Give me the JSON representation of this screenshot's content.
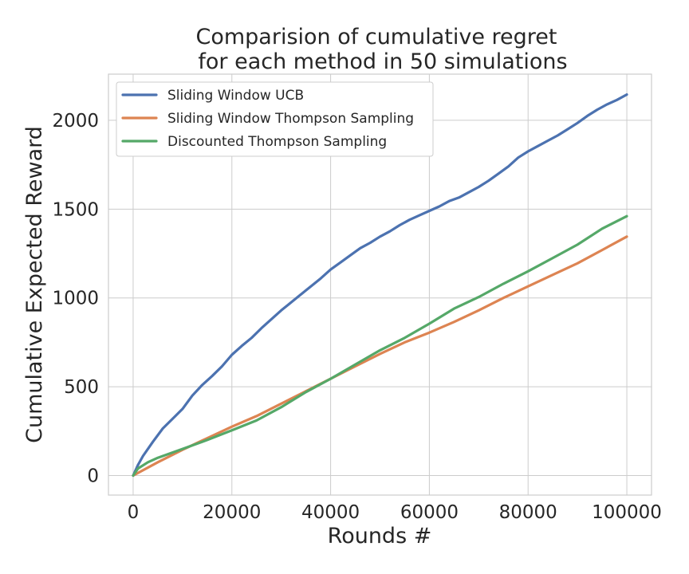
{
  "chart_data": {
    "type": "line",
    "title_lines": [
      "Comparision of cumulative regret",
      "for each method in 50 simulations"
    ],
    "xlabel": "Rounds #",
    "ylabel": "Cumulative Expected Reward",
    "xlim": [
      -5000,
      105000
    ],
    "ylim": [
      -110,
      2260
    ],
    "xticks": [
      0,
      20000,
      40000,
      60000,
      80000,
      100000
    ],
    "xtick_labels": [
      "0",
      "20000",
      "40000",
      "60000",
      "80000",
      "100000"
    ],
    "yticks": [
      0,
      500,
      1000,
      1500,
      2000
    ],
    "ytick_labels": [
      "0",
      "500",
      "1000",
      "1500",
      "2000"
    ],
    "grid": true,
    "legend_position": "top-left",
    "series": [
      {
        "name": "Sliding Window UCB",
        "color": "#4c72b0",
        "x": [
          0,
          1000,
          2000,
          4000,
          6000,
          8000,
          10000,
          12000,
          14000,
          16000,
          18000,
          20000,
          22000,
          24000,
          26000,
          28000,
          30000,
          32000,
          34000,
          36000,
          38000,
          40000,
          42000,
          44000,
          46000,
          48000,
          50000,
          52000,
          54000,
          56000,
          58000,
          60000,
          62000,
          64000,
          66000,
          68000,
          70000,
          72000,
          74000,
          76000,
          78000,
          80000,
          82000,
          84000,
          86000,
          88000,
          90000,
          92000,
          94000,
          96000,
          98000,
          100000
        ],
        "y": [
          0,
          60,
          110,
          190,
          265,
          320,
          375,
          450,
          510,
          560,
          615,
          680,
          730,
          775,
          830,
          880,
          930,
          975,
          1020,
          1065,
          1110,
          1160,
          1200,
          1240,
          1280,
          1310,
          1345,
          1375,
          1410,
          1440,
          1465,
          1490,
          1515,
          1545,
          1565,
          1595,
          1625,
          1660,
          1700,
          1740,
          1790,
          1825,
          1855,
          1885,
          1915,
          1950,
          1985,
          2025,
          2060,
          2090,
          2115,
          2145
        ]
      },
      {
        "name": "Sliding Window Thompson Sampling",
        "color": "#dd8452",
        "x": [
          0,
          5000,
          10000,
          15000,
          20000,
          25000,
          30000,
          35000,
          40000,
          45000,
          50000,
          55000,
          60000,
          65000,
          70000,
          75000,
          80000,
          85000,
          90000,
          95000,
          100000
        ],
        "y": [
          0,
          75,
          145,
          210,
          275,
          335,
          405,
          475,
          545,
          615,
          685,
          750,
          805,
          865,
          930,
          1000,
          1065,
          1130,
          1195,
          1270,
          1345
        ]
      },
      {
        "name": "Discounted Thompson Sampling",
        "color": "#55a868",
        "x": [
          0,
          1000,
          3000,
          5000,
          10000,
          15000,
          20000,
          25000,
          30000,
          35000,
          40000,
          45000,
          50000,
          55000,
          60000,
          65000,
          70000,
          75000,
          80000,
          85000,
          90000,
          95000,
          100000
        ],
        "y": [
          0,
          40,
          75,
          100,
          150,
          200,
          255,
          310,
          385,
          470,
          545,
          625,
          705,
          775,
          855,
          940,
          1005,
          1080,
          1150,
          1225,
          1300,
          1390,
          1460
        ]
      }
    ]
  }
}
